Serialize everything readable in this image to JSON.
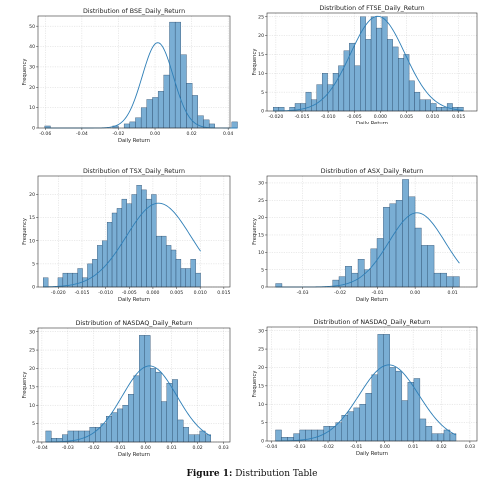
{
  "caption": {
    "prefix": "Figure 1:",
    "text": "Distribution Table"
  },
  "style": {
    "bar_fill": "#7aaed4",
    "bar_edge": "#1f3c5c",
    "kde": "#2f7fb7",
    "grid": "#c9c9c9"
  },
  "chart_data": [
    {
      "type": "bar",
      "title": "Distribution of BSE_Daily_Return",
      "xlabel": "Daily Return",
      "ylabel": "Frequency",
      "xlim": [
        -0.064,
        0.041
      ],
      "ylim": [
        0,
        55
      ],
      "xticks": [
        "-0.06",
        "-0.04",
        "-0.02",
        "0.00",
        "0.02",
        "0.04"
      ],
      "yticks": [
        "0",
        "10",
        "20",
        "30",
        "40",
        "50"
      ],
      "xtick_values": [
        -0.06,
        -0.04,
        -0.02,
        0.0,
        0.02,
        0.04
      ],
      "ytick_values": [
        0,
        10,
        20,
        30,
        40,
        50
      ],
      "bin_start": -0.0603,
      "bin_width": 0.0031,
      "values": [
        1,
        0,
        0,
        0,
        0,
        0,
        0,
        0,
        0,
        0,
        0,
        0,
        1,
        0,
        2,
        3,
        5,
        10,
        14,
        15,
        18,
        26,
        52,
        52,
        36,
        22,
        16,
        6,
        4,
        2,
        0,
        0,
        0,
        3
      ],
      "kde": {
        "mean": 0.0015,
        "sd": 0.0085
      }
    },
    {
      "type": "bar",
      "title": "Distribution of FTSE_Daily_Return",
      "xlabel": "Daily Return",
      "ylabel": "Frequency",
      "xlim": [
        -0.0217,
        0.0185
      ],
      "ylim": [
        0,
        26
      ],
      "xticks": [
        "-0.020",
        "-0.015",
        "-0.010",
        "-0.005",
        "0.000",
        "0.005",
        "0.010",
        "0.015"
      ],
      "yticks": [
        "0",
        "5",
        "10",
        "15",
        "20",
        "25"
      ],
      "xtick_values": [
        -0.02,
        -0.015,
        -0.01,
        -0.005,
        0.0,
        0.005,
        0.01,
        0.015
      ],
      "ytick_values": [
        0,
        5,
        10,
        15,
        20,
        25
      ],
      "bin_start": -0.0205,
      "bin_width": 0.00104,
      "values": [
        1,
        1,
        0,
        1,
        2,
        2,
        5,
        3,
        7,
        10,
        7,
        10,
        12,
        16,
        18,
        12,
        25,
        19,
        25,
        22,
        25,
        19,
        17,
        14,
        15,
        8,
        5,
        3,
        3,
        2,
        1,
        1,
        2,
        1,
        1
      ],
      "kde": {
        "mean": -0.0005,
        "sd": 0.0052
      }
    },
    {
      "type": "bar",
      "title": "Distribution of TSX_Daily_Return",
      "xlabel": "Daily Return",
      "ylabel": "Frequency",
      "xlim": [
        -0.0243,
        0.0163
      ],
      "ylim": [
        0,
        24
      ],
      "xticks": [
        "-0.020",
        "-0.015",
        "-0.010",
        "-0.005",
        "0.000",
        "0.005",
        "0.010",
        "0.015"
      ],
      "yticks": [
        "0",
        "5",
        "10",
        "15",
        "20"
      ],
      "xtick_values": [
        -0.02,
        -0.015,
        -0.01,
        -0.005,
        0.0,
        0.005,
        0.01,
        0.015
      ],
      "ytick_values": [
        0,
        5,
        10,
        15,
        20
      ],
      "bin_start": -0.0232,
      "bin_width": 0.00104,
      "values": [
        2,
        0,
        0,
        2,
        3,
        3,
        3,
        4,
        2,
        5,
        6,
        9,
        10,
        14,
        16,
        17,
        19,
        18,
        20,
        22,
        21,
        19,
        20,
        11,
        11,
        9,
        8,
        6,
        4,
        4,
        6,
        3
      ],
      "kde": {
        "mean": 0.0012,
        "sd": 0.0068
      }
    },
    {
      "type": "bar",
      "title": "Distribution of ASX_Daily_Return",
      "xlabel": "Daily Return",
      "ylabel": "Frequency",
      "xlim": [
        -0.0395,
        0.0165
      ],
      "ylim": [
        0,
        32
      ],
      "xticks": [
        "-0.03",
        "-0.02",
        "-0.01",
        "0.00",
        "0.01"
      ],
      "yticks": [
        "0",
        "5",
        "10",
        "15",
        "20",
        "25",
        "30"
      ],
      "xtick_values": [
        -0.03,
        -0.02,
        -0.01,
        0.0,
        0.01
      ],
      "ytick_values": [
        0,
        5,
        10,
        15,
        20,
        25,
        30
      ],
      "bin_start": -0.0372,
      "bin_width": 0.00169,
      "values": [
        1,
        0,
        0,
        0,
        0,
        0,
        0,
        0,
        0,
        2,
        3,
        6,
        4,
        8,
        5,
        11,
        14,
        23,
        24,
        25,
        31,
        26,
        17,
        12,
        12,
        4,
        4,
        3,
        3
      ],
      "kde": {
        "mean": 0.0005,
        "sd": 0.0075
      }
    },
    {
      "type": "bar",
      "title": "Distribution of NASDAQ_Daily_Return",
      "xlabel": "Daily Return",
      "ylabel": "Frequency",
      "xlim": [
        -0.0415,
        0.0325
      ],
      "ylim": [
        0,
        31
      ],
      "xticks": [
        "-0.04",
        "-0.03",
        "-0.02",
        "-0.01",
        "0.00",
        "0.01",
        "0.02",
        "0.03"
      ],
      "yticks": [
        "0",
        "5",
        "10",
        "15",
        "20",
        "25",
        "30"
      ],
      "xtick_values": [
        -0.04,
        -0.03,
        -0.02,
        -0.01,
        0.0,
        0.01,
        0.02,
        0.03
      ],
      "ytick_values": [
        0,
        5,
        10,
        15,
        20,
        25,
        30
      ],
      "bin_start": -0.0385,
      "bin_width": 0.00212,
      "values": [
        3,
        1,
        1,
        2,
        3,
        3,
        3,
        3,
        4,
        4,
        5,
        7,
        8,
        9,
        10,
        13,
        18,
        29,
        29,
        20,
        19,
        11,
        16,
        17,
        6,
        4,
        2,
        2,
        3,
        2
      ],
      "kde": {
        "mean": 0.0015,
        "sd": 0.0105
      }
    },
    {
      "type": "bar",
      "title": "Distribution of NASDAQ_Daily_Return",
      "xlabel": "Daily Return",
      "ylabel": "Frequency",
      "xlim": [
        -0.0415,
        0.0325
      ],
      "ylim": [
        0,
        31
      ],
      "xticks": [
        "-0.04",
        "-0.03",
        "-0.02",
        "-0.01",
        "0.00",
        "0.01",
        "0.02",
        "0.03"
      ],
      "yticks": [
        "0",
        "5",
        "10",
        "15",
        "20",
        "25",
        "30"
      ],
      "xtick_values": [
        -0.04,
        -0.03,
        -0.02,
        -0.01,
        0.0,
        0.01,
        0.02,
        0.03
      ],
      "ytick_values": [
        0,
        5,
        10,
        15,
        20,
        25,
        30
      ],
      "bin_start": -0.0385,
      "bin_width": 0.00212,
      "values": [
        3,
        1,
        1,
        2,
        3,
        3,
        3,
        3,
        4,
        4,
        5,
        7,
        8,
        9,
        10,
        13,
        18,
        29,
        29,
        20,
        19,
        11,
        16,
        17,
        6,
        4,
        2,
        2,
        3,
        2
      ],
      "kde": {
        "mean": 0.0015,
        "sd": 0.0105
      }
    }
  ]
}
